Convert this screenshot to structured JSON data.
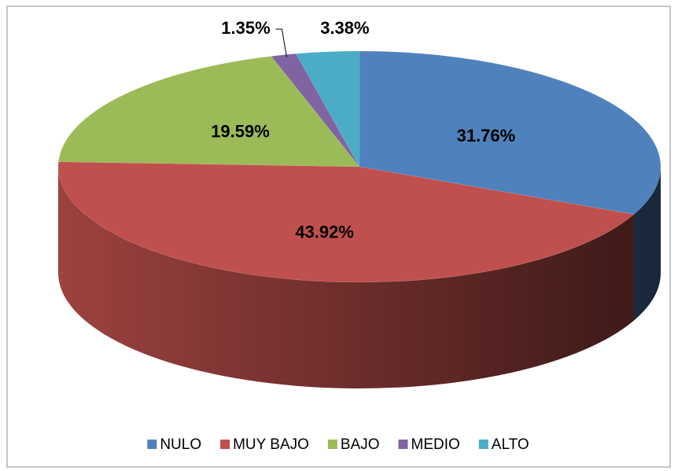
{
  "chart_data": {
    "type": "pie",
    "categories": [
      "NULO",
      "MUY BAJO",
      "BAJO",
      "MEDIO",
      "ALTO"
    ],
    "values": [
      31.76,
      43.92,
      19.59,
      1.35,
      3.38
    ],
    "value_labels": [
      "31.76%",
      "43.92%",
      "19.59%",
      "1.35%",
      "3.38%"
    ],
    "colors": [
      "#4f81bd",
      "#c0504d",
      "#9bbb59",
      "#8064a2",
      "#4bacc6"
    ],
    "legend": "bottom"
  }
}
